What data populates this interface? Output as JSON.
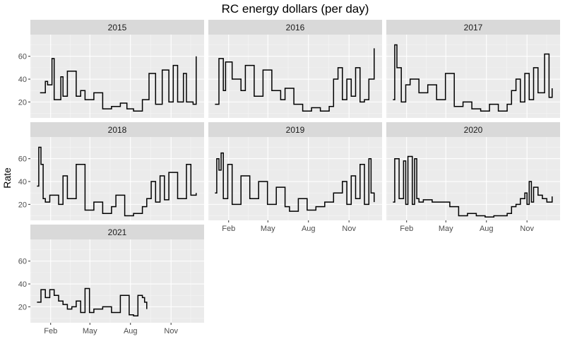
{
  "chart_data": {
    "type": "line",
    "title": "RC energy dollars (per day)",
    "xlabel": "",
    "ylabel": "Rate",
    "x_ticks": [
      "Feb",
      "May",
      "Aug",
      "Nov"
    ],
    "x_tick_days": [
      32,
      121,
      213,
      305
    ],
    "x_domain_days": [
      -14,
      380
    ],
    "y_ticks": [
      20,
      40,
      60
    ],
    "ylim": [
      6,
      79
    ],
    "grid": true,
    "facets": [
      {
        "label": "2015",
        "x": [
          8,
          20,
          25,
          35,
          40,
          55,
          60,
          70,
          90,
          100,
          110,
          130,
          150,
          170,
          190,
          205,
          220,
          240,
          255,
          270,
          285,
          300,
          310,
          320,
          333,
          340,
          355,
          362
        ],
        "y": [
          28,
          38,
          35,
          58,
          22,
          42,
          25,
          47,
          25,
          30,
          22,
          28,
          14,
          16,
          19,
          14,
          12,
          22,
          45,
          18,
          48,
          20,
          52,
          20,
          45,
          20,
          18,
          60
        ]
      },
      {
        "label": "2016",
        "x": [
          1,
          10,
          20,
          25,
          40,
          60,
          70,
          90,
          110,
          130,
          150,
          160,
          180,
          200,
          220,
          240,
          260,
          270,
          280,
          290,
          300,
          310,
          320,
          330,
          340,
          350,
          362
        ],
        "y": [
          18,
          58,
          30,
          55,
          40,
          30,
          52,
          25,
          48,
          30,
          22,
          32,
          18,
          12,
          15,
          12,
          16,
          40,
          50,
          22,
          40,
          25,
          50,
          20,
          22,
          40,
          67
        ]
      },
      {
        "label": "2017",
        "x": [
          1,
          5,
          10,
          20,
          30,
          40,
          60,
          80,
          100,
          120,
          140,
          160,
          180,
          200,
          220,
          240,
          260,
          270,
          280,
          290,
          300,
          310,
          320,
          330,
          345,
          355,
          362
        ],
        "y": [
          22,
          70,
          50,
          20,
          35,
          40,
          28,
          35,
          22,
          45,
          16,
          20,
          14,
          12,
          18,
          12,
          18,
          30,
          40,
          20,
          45,
          22,
          50,
          28,
          62,
          24,
          32
        ]
      },
      {
        "label": "2018",
        "x": [
          1,
          5,
          10,
          15,
          20,
          30,
          50,
          60,
          70,
          90,
          110,
          130,
          150,
          170,
          180,
          200,
          220,
          240,
          250,
          260,
          270,
          280,
          290,
          300,
          320,
          340,
          350,
          362
        ],
        "y": [
          36,
          70,
          55,
          25,
          22,
          28,
          20,
          45,
          25,
          55,
          15,
          22,
          12,
          18,
          28,
          10,
          12,
          18,
          25,
          40,
          22,
          45,
          24,
          48,
          25,
          55,
          28,
          30
        ]
      },
      {
        "label": "2019",
        "x": [
          1,
          5,
          10,
          15,
          20,
          30,
          40,
          60,
          80,
          100,
          120,
          140,
          160,
          170,
          190,
          210,
          230,
          250,
          270,
          290,
          300,
          310,
          320,
          330,
          340,
          350,
          355,
          362
        ],
        "y": [
          30,
          60,
          50,
          65,
          25,
          55,
          20,
          45,
          25,
          40,
          20,
          35,
          18,
          14,
          25,
          15,
          18,
          22,
          30,
          40,
          20,
          45,
          25,
          55,
          20,
          60,
          30,
          22
        ]
      },
      {
        "label": "2020",
        "x": [
          1,
          5,
          15,
          25,
          30,
          35,
          45,
          50,
          55,
          60,
          70,
          90,
          110,
          130,
          150,
          170,
          190,
          210,
          230,
          250,
          260,
          270,
          280,
          290,
          300,
          305,
          310,
          315,
          320,
          330,
          340,
          350,
          362
        ],
        "y": [
          22,
          60,
          25,
          58,
          20,
          62,
          20,
          60,
          25,
          22,
          24,
          22,
          22,
          18,
          10,
          12,
          10,
          9,
          10,
          10,
          12,
          18,
          20,
          25,
          30,
          20,
          40,
          22,
          35,
          28,
          25,
          22,
          27
        ]
      },
      {
        "label": "2021",
        "x": [
          1,
          10,
          20,
          30,
          40,
          50,
          60,
          70,
          80,
          90,
          100,
          110,
          120,
          130,
          150,
          170,
          190,
          210,
          220,
          230,
          240,
          245,
          250
        ],
        "y": [
          24,
          35,
          28,
          35,
          30,
          25,
          22,
          18,
          20,
          25,
          15,
          36,
          15,
          18,
          20,
          15,
          30,
          13,
          12,
          30,
          28,
          24,
          18
        ]
      }
    ]
  }
}
